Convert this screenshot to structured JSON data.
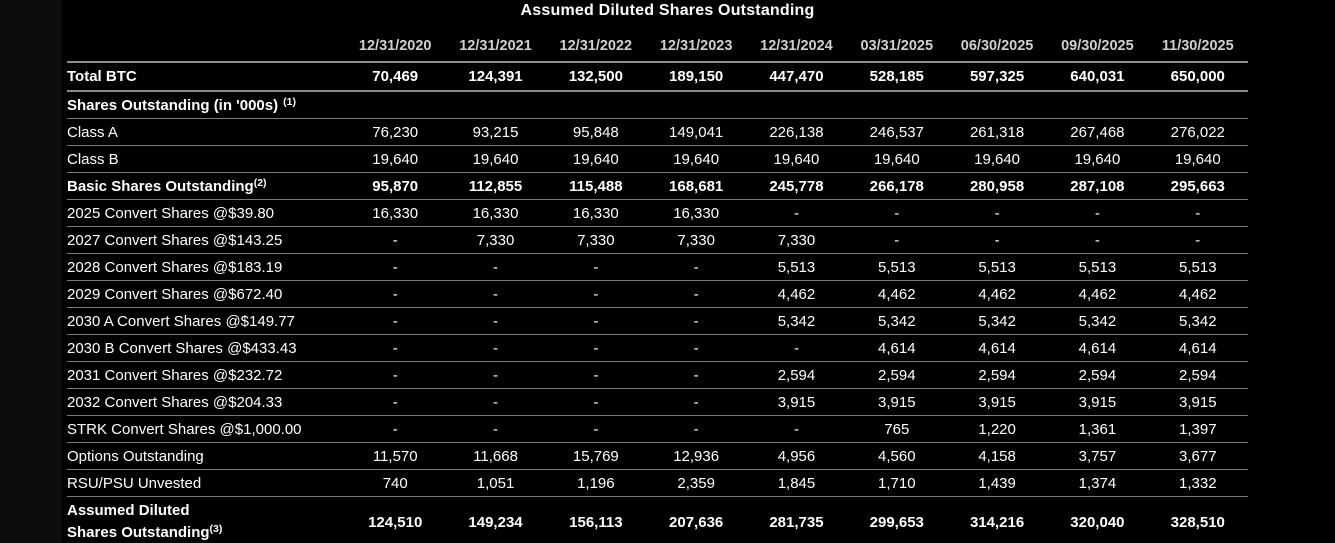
{
  "colors": {
    "background": "#000000",
    "text": "#ffffff",
    "header_text": "#d0d0d0",
    "rule_thick": "#8c8c8c",
    "rule_thin": "#7a7a7a"
  },
  "chart_data": {
    "type": "table",
    "title": "Assumed Diluted Shares Outstanding",
    "columns": [
      "12/31/2020",
      "12/31/2021",
      "12/31/2022",
      "12/31/2023",
      "12/31/2024",
      "03/31/2025",
      "06/30/2025",
      "09/30/2025",
      "11/30/2025"
    ],
    "rows": [
      {
        "label": "Total BTC",
        "bold": true,
        "thick_bottom": true,
        "total_btc": true,
        "values": [
          "70,469",
          "124,391",
          "132,500",
          "189,150",
          "447,470",
          "528,185",
          "597,325",
          "640,031",
          "650,000"
        ]
      },
      {
        "label": "Shares Outstanding (in '000s)",
        "sup": "(1)",
        "sup_space": true,
        "bold": true,
        "section": true,
        "values": [
          "",
          "",
          "",
          "",
          "",
          "",
          "",
          "",
          ""
        ]
      },
      {
        "label": "Class A",
        "values": [
          "76,230",
          "93,215",
          "95,848",
          "149,041",
          "226,138",
          "246,537",
          "261,318",
          "267,468",
          "276,022"
        ]
      },
      {
        "label": "Class B",
        "values": [
          "19,640",
          "19,640",
          "19,640",
          "19,640",
          "19,640",
          "19,640",
          "19,640",
          "19,640",
          "19,640"
        ]
      },
      {
        "label": "Basic Shares Outstanding",
        "sup": "(2)",
        "bold": true,
        "values": [
          "95,870",
          "112,855",
          "115,488",
          "168,681",
          "245,778",
          "266,178",
          "280,958",
          "287,108",
          "295,663"
        ]
      },
      {
        "label": "2025 Convert Shares @$39.80",
        "values": [
          "16,330",
          "16,330",
          "16,330",
          "16,330",
          "-",
          "-",
          "-",
          "-",
          "-"
        ]
      },
      {
        "label": "2027 Convert Shares @$143.25",
        "values": [
          "-",
          "7,330",
          "7,330",
          "7,330",
          "7,330",
          "-",
          "-",
          "-",
          "-"
        ]
      },
      {
        "label": "2028 Convert Shares @$183.19",
        "values": [
          "-",
          "-",
          "-",
          "-",
          "5,513",
          "5,513",
          "5,513",
          "5,513",
          "5,513"
        ]
      },
      {
        "label": "2029 Convert Shares @$672.40",
        "values": [
          "-",
          "-",
          "-",
          "-",
          "4,462",
          "4,462",
          "4,462",
          "4,462",
          "4,462"
        ]
      },
      {
        "label": "2030 A Convert Shares @$149.77",
        "values": [
          "-",
          "-",
          "-",
          "-",
          "5,342",
          "5,342",
          "5,342",
          "5,342",
          "5,342"
        ]
      },
      {
        "label": "2030 B Convert Shares @$433.43",
        "values": [
          "-",
          "-",
          "-",
          "-",
          "-",
          "4,614",
          "4,614",
          "4,614",
          "4,614"
        ]
      },
      {
        "label": "2031 Convert Shares @$232.72",
        "values": [
          "-",
          "-",
          "-",
          "-",
          "2,594",
          "2,594",
          "2,594",
          "2,594",
          "2,594"
        ]
      },
      {
        "label": "2032 Convert Shares @$204.33",
        "values": [
          "-",
          "-",
          "-",
          "-",
          "3,915",
          "3,915",
          "3,915",
          "3,915",
          "3,915"
        ]
      },
      {
        "label": "STRK Convert Shares @$1,000.00",
        "values": [
          "-",
          "-",
          "-",
          "-",
          "-",
          "765",
          "1,220",
          "1,361",
          "1,397"
        ]
      },
      {
        "label": "Options Outstanding",
        "values": [
          "11,570",
          "11,668",
          "15,769",
          "12,936",
          "4,956",
          "4,560",
          "4,158",
          "3,757",
          "3,677"
        ]
      },
      {
        "label": "RSU/PSU Unvested",
        "values": [
          "740",
          "1,051",
          "1,196",
          "2,359",
          "1,845",
          "1,710",
          "1,439",
          "1,374",
          "1,332"
        ]
      },
      {
        "label_lines": [
          "Assumed Diluted",
          "Shares Outstanding"
        ],
        "sup": "(3)",
        "bold": true,
        "thick_bottom": true,
        "tall": true,
        "values": [
          "124,510",
          "149,234",
          "156,113",
          "207,636",
          "281,735",
          "299,653",
          "314,216",
          "320,040",
          "328,510"
        ]
      }
    ]
  }
}
